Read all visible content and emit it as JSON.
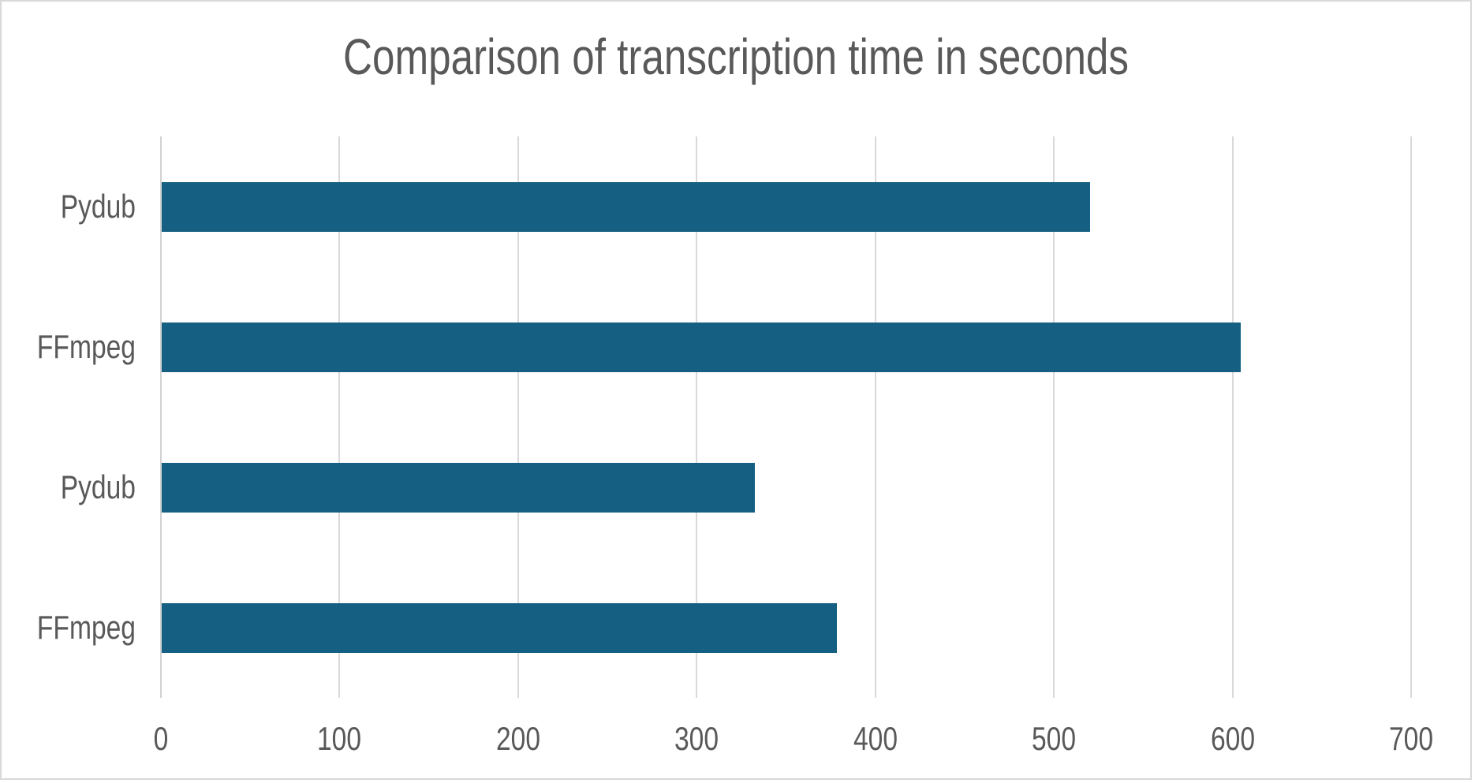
{
  "window": {
    "background": "#ffffff",
    "border_color": "#d9d9d9"
  },
  "chart_data": {
    "type": "bar",
    "orientation": "horizontal",
    "title": "Comparison of transcription time in seconds",
    "categories": [
      "Pydub",
      "FFmpeg",
      "Pydub",
      "FFmpeg"
    ],
    "category_order": "top-to-bottom",
    "values": [
      520,
      604,
      332,
      378
    ],
    "xlabel": "",
    "ylabel": "",
    "xlim": [
      0,
      700
    ],
    "xticks": [
      0,
      100,
      200,
      300,
      400,
      500,
      600,
      700
    ],
    "grid": true,
    "legend": "none",
    "colors": {
      "bar_fill": "#156082",
      "title_text": "#595959",
      "axis_text": "#595959",
      "gridline": "#d9d9d9",
      "axis_line": "#d2d2d2"
    }
  }
}
